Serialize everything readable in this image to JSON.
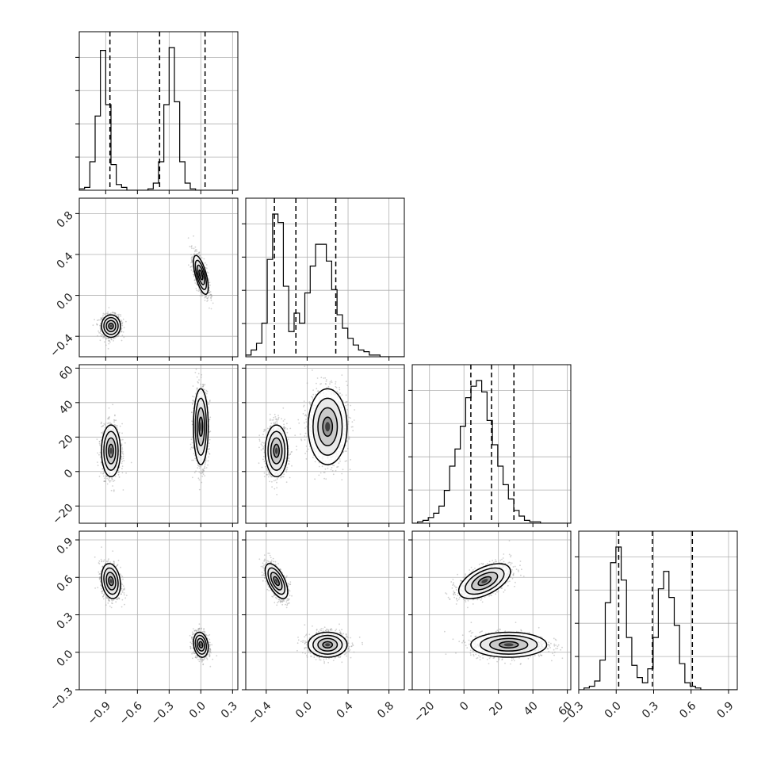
{
  "chart_data": {
    "type": "corner",
    "params": [
      {
        "range": [
          -1.15,
          0.35
        ],
        "ticks": [
          -0.9,
          -0.6,
          -0.3,
          0.0,
          0.3
        ],
        "tick_labels": [
          "−0.9",
          "−0.6",
          "−0.3",
          "0.0",
          "0.3"
        ],
        "quantiles": [
          -0.86,
          -0.39,
          0.04
        ]
      },
      {
        "range": [
          -0.6,
          0.95
        ],
        "ticks": [
          -0.4,
          0.0,
          0.4,
          0.8
        ],
        "tick_labels": [
          "−0.4",
          "0.0",
          "0.4",
          "0.8"
        ],
        "quantiles": [
          -0.32,
          -0.11,
          0.28
        ]
      },
      {
        "range": [
          -30,
          62
        ],
        "ticks": [
          -20,
          0,
          20,
          40,
          60
        ],
        "tick_labels": [
          "−20",
          "0",
          "20",
          "40",
          "60"
        ],
        "quantiles": [
          4,
          16,
          29
        ]
      },
      {
        "range": [
          -0.3,
          0.97
        ],
        "ticks": [
          -0.3,
          0.0,
          0.3,
          0.6,
          0.9
        ],
        "tick_labels": [
          "−0.3",
          "0.0",
          "0.3",
          "0.6",
          "0.9"
        ],
        "quantiles": [
          0.02,
          0.29,
          0.61
        ]
      }
    ],
    "histograms": [
      {
        "edges_start": -1.15,
        "bin_width": 0.05,
        "counts": [
          0.01,
          0.02,
          0.2,
          0.52,
          0.98,
          0.6,
          0.18,
          0.04,
          0.02,
          0,
          0,
          0,
          0,
          0.01,
          0.05,
          0.2,
          0.6,
          1.0,
          0.62,
          0.2,
          0.05,
          0.01,
          0,
          0,
          0,
          0,
          0,
          0,
          0,
          0
        ]
      },
      {
        "edges_start": -0.6,
        "bin_width": 0.0525,
        "counts": [
          0.01,
          0.04,
          0.08,
          0.2,
          0.58,
          0.85,
          0.8,
          0.42,
          0.15,
          0.26,
          0.2,
          0.38,
          0.54,
          0.67,
          0.67,
          0.57,
          0.4,
          0.25,
          0.17,
          0.11,
          0.07,
          0.04,
          0.03,
          0.01,
          0.01,
          0,
          0,
          0,
          0,
          0
        ]
      },
      {
        "edges_start": -30,
        "bin_width": 3.1,
        "counts": [
          0,
          0.01,
          0.02,
          0.04,
          0.07,
          0.12,
          0.23,
          0.4,
          0.52,
          0.68,
          0.88,
          0.96,
          1.0,
          0.92,
          0.72,
          0.55,
          0.4,
          0.27,
          0.17,
          0.09,
          0.05,
          0.02,
          0.01,
          0.01,
          0,
          0,
          0,
          0,
          0,
          0
        ]
      },
      {
        "edges_start": -0.3,
        "bin_width": 0.0425,
        "counts": [
          0,
          0.01,
          0.02,
          0.05,
          0.17,
          0.5,
          0.73,
          0.82,
          0.63,
          0.3,
          0.14,
          0.07,
          0.04,
          0.12,
          0.3,
          0.58,
          0.68,
          0.53,
          0.37,
          0.15,
          0.04,
          0.02,
          0.01,
          0,
          0,
          0,
          0,
          0,
          0,
          0
        ]
      }
    ],
    "modes": [
      {
        "mean": [
          -0.85,
          -0.3,
          12,
          0.57
        ],
        "sd": [
          0.045,
          0.055,
          7.5,
          0.07
        ],
        "corr": {
          "0-1": 0.0,
          "0-2": 0.0,
          "0-3": -0.2,
          "1-2": 0.0,
          "1-3": -0.6,
          "2-3": 0.55
        }
      },
      {
        "mean": [
          0.0,
          0.2,
          26,
          0.06
        ],
        "sd": [
          0.035,
          0.095,
          11,
          0.05
        ],
        "corr": {
          "0-1": -0.65,
          "0-2": 0.0,
          "0-3": -0.2,
          "1-2": 0.0,
          "1-3": 0.0,
          "2-3": 0.0
        }
      }
    ],
    "samples_per_mode": 1100,
    "grid": true
  }
}
